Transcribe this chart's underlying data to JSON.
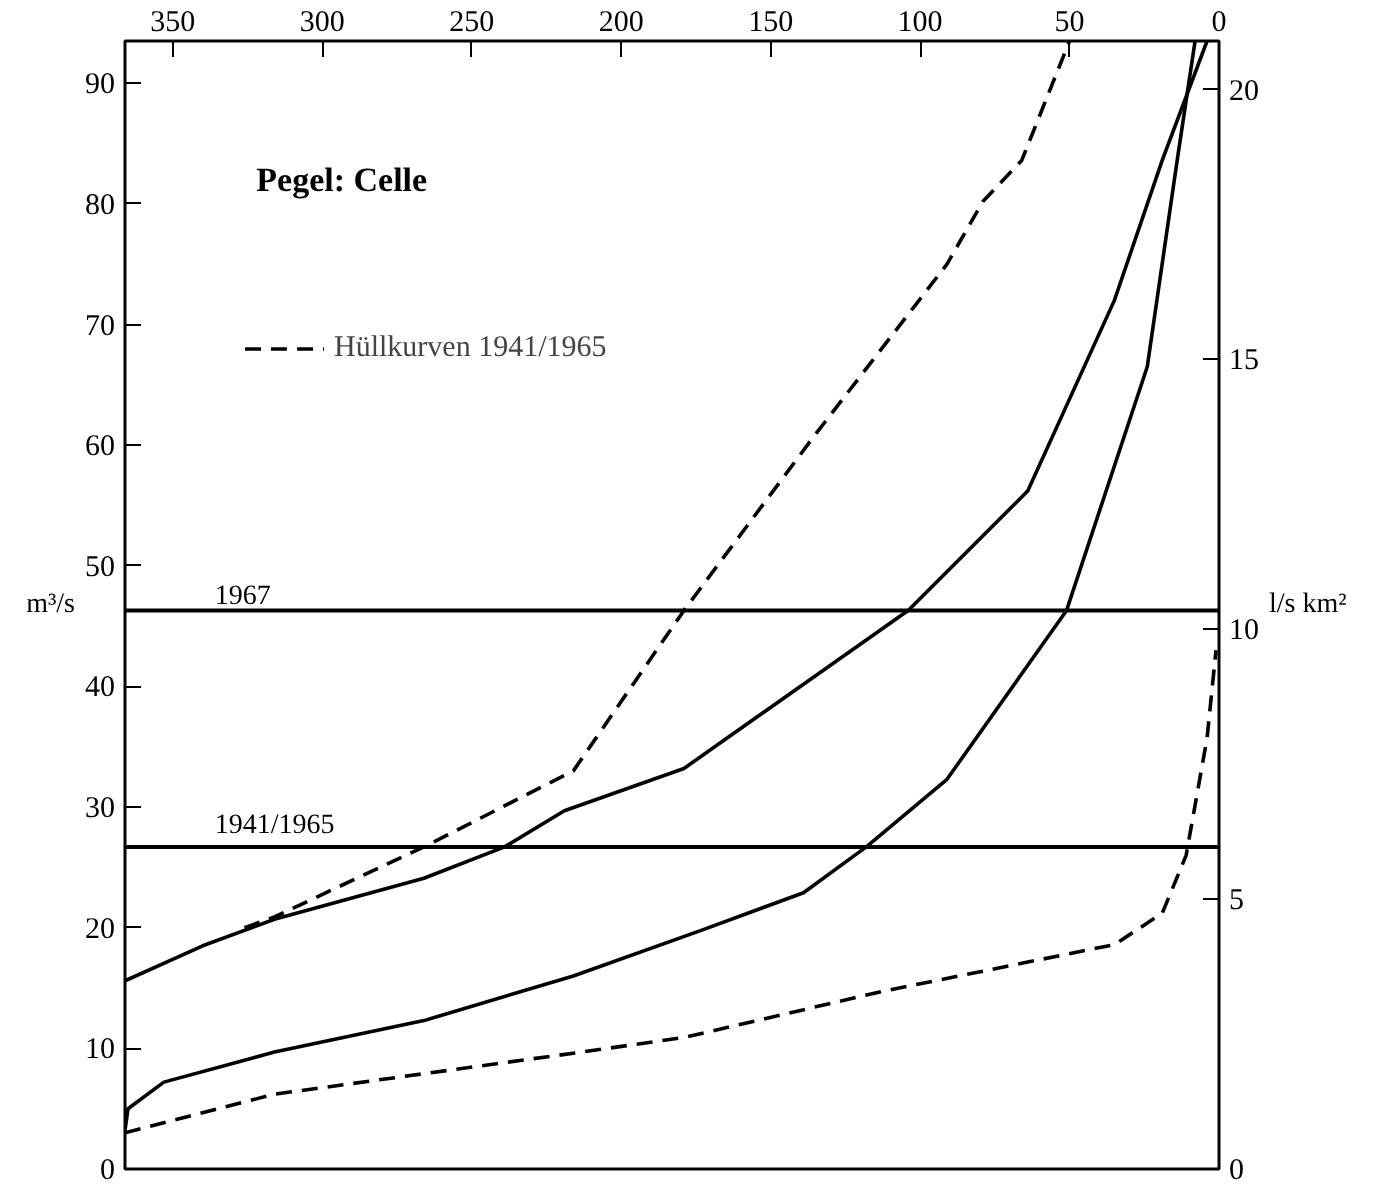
{
  "chart_data": {
    "type": "line",
    "annotations": [
      "Pegel: Celle",
      {
        "text": "1967",
        "x": 336,
        "y": 46.3
      },
      {
        "text": "1941/1965",
        "x": 336,
        "y": 26.7
      }
    ],
    "ylabel": "m³/s",
    "y2label": "l/s km²",
    "xlim": [
      366,
      0
    ],
    "xticks": [
      350,
      300,
      250,
      200,
      150,
      100,
      50,
      0
    ],
    "ylim": [
      0,
      93.5
    ],
    "yticks": [
      0,
      10,
      20,
      30,
      40,
      50,
      60,
      70,
      80,
      90
    ],
    "y2lim": [
      0,
      20.9
    ],
    "y2ticks": [
      0,
      5,
      10,
      15,
      20
    ],
    "grid": false,
    "legend": "top left",
    "series": [
      {
        "color": "#000000",
        "line_style": "solid",
        "x": [
          366,
          365,
          353,
          316,
          266,
          216,
          173,
          139,
          118,
          91,
          51,
          24,
          14,
          8
        ],
        "values": [
          3.2,
          5,
          7.2,
          9.7,
          12.3,
          16,
          19.8,
          22.9,
          26.7,
          32.3,
          46.3,
          66.5,
          83.6,
          93.5
        ]
      },
      {
        "color": "#000000",
        "line_style": "solid",
        "x": [
          366,
          340,
          316,
          266,
          239,
          219,
          179,
          104,
          64,
          35,
          19,
          4
        ],
        "values": [
          15.6,
          18.5,
          20.7,
          24.1,
          26.7,
          29.7,
          33.2,
          46.3,
          56.2,
          72,
          83.6,
          93.5
        ]
      },
      {
        "name": "Hüllkurven 1941/1965",
        "color": "#000000",
        "line_style": "dashed",
        "x": [
          326,
          316,
          266,
          216,
          179,
          135,
          91,
          79,
          66,
          50
        ],
        "values": [
          20,
          20.9,
          26.7,
          33,
          46.3,
          60.9,
          75,
          80.2,
          83.6,
          93.5
        ]
      },
      {
        "color": "#000000",
        "line_style": "dashed",
        "x": [
          366,
          316,
          266,
          216,
          179,
          113,
          35,
          19,
          11,
          4,
          1
        ],
        "values": [
          3,
          6.2,
          7.9,
          9.6,
          10.9,
          14.7,
          18.6,
          21.2,
          26,
          35.7,
          43
        ]
      }
    ],
    "ref_lines": [
      {
        "axis": "y",
        "value": 46.3
      },
      {
        "axis": "y",
        "value": 26.7
      }
    ]
  }
}
